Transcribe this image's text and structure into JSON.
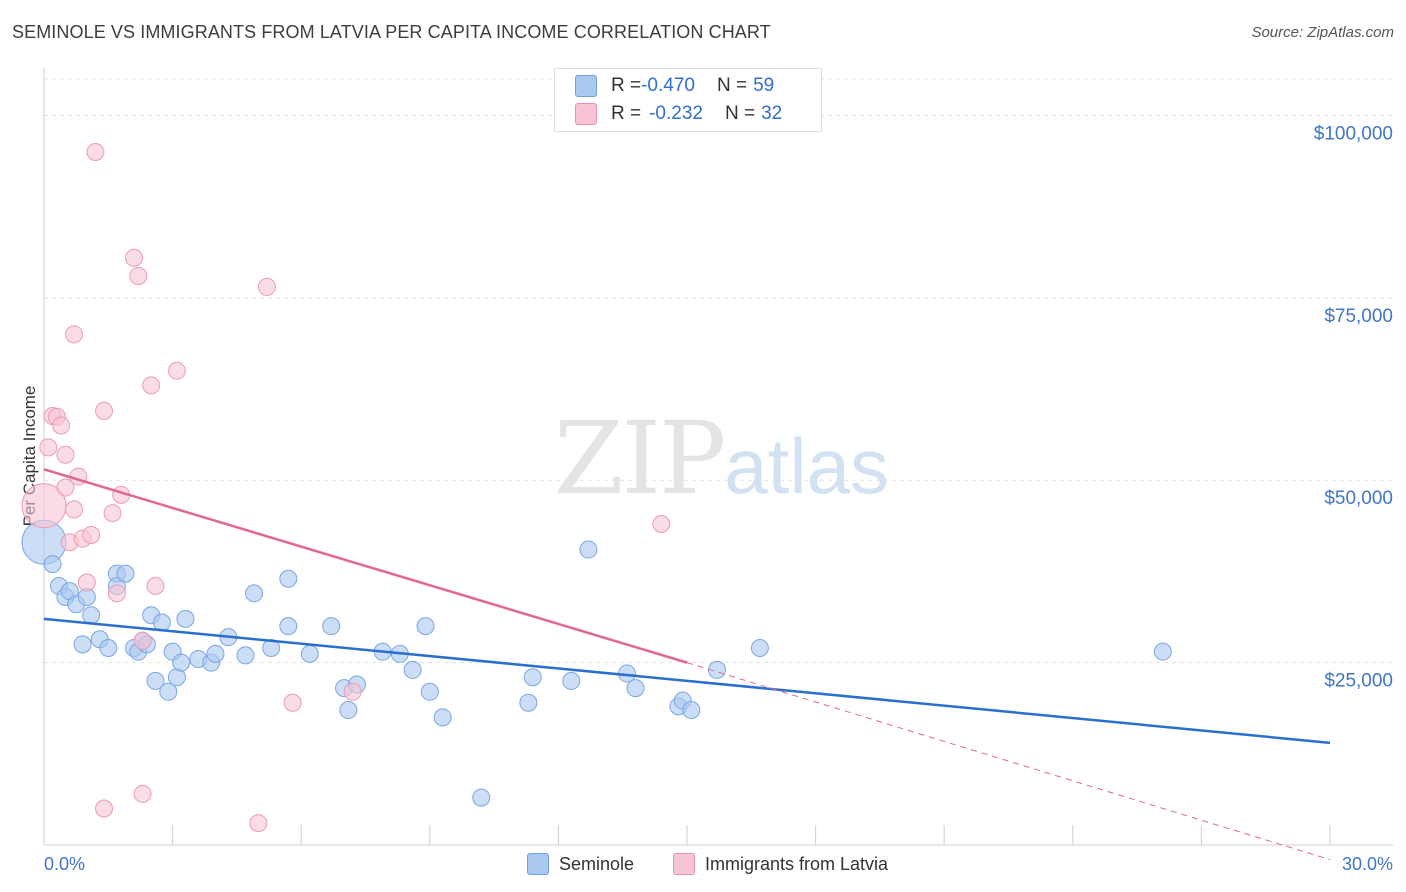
{
  "title": "SEMINOLE VS IMMIGRANTS FROM LATVIA PER CAPITA INCOME CORRELATION CHART",
  "source": "Source: ZipAtlas.com",
  "watermark": {
    "zip": "ZIP",
    "atlas": "atlas"
  },
  "legend_top": [
    {
      "r_label": "R = ",
      "r_value": "-0.470",
      "n_label": "N = ",
      "n_value": "59",
      "color": "#aac8f0",
      "border": "#6f9fdf"
    },
    {
      "r_label": "R = ",
      "r_value": "-0.232",
      "n_label": "N = ",
      "n_value": "32",
      "color": "#f7c4d3",
      "border": "#ec8fac"
    }
  ],
  "colors": {
    "blue_fill": "#aac8f0",
    "blue_line": "#2a6fcf",
    "pink_fill": "#f7c4d3",
    "pink_line": "#e0678d",
    "axis_text": "#3f76c8"
  },
  "chart_data": {
    "type": "scatter",
    "title": "SEMINOLE VS IMMIGRANTS FROM LATVIA PER CAPITA INCOME CORRELATION CHART",
    "ylabel": "Per Capita Income",
    "xlim": [
      0,
      30
    ],
    "ylim": [
      0,
      105000
    ],
    "x_tick_labels": [
      "0.0%",
      "30.0%"
    ],
    "y_tick_values": [
      25000,
      50000,
      75000,
      100000
    ],
    "y_tick_labels": [
      "$25,000",
      "$50,000",
      "$75,000",
      "$100,000"
    ],
    "grid": true,
    "series": [
      {
        "name": "Seminole",
        "trend": {
          "x0": 0,
          "y0": 31000,
          "x1": 30,
          "y1": 14000
        },
        "points": [
          [
            0.0,
            41500
          ],
          [
            0.2,
            38500
          ],
          [
            0.35,
            35500
          ],
          [
            0.5,
            34000
          ],
          [
            0.6,
            34800
          ],
          [
            0.75,
            33000
          ],
          [
            0.9,
            27500
          ],
          [
            1.0,
            34000
          ],
          [
            1.1,
            31500
          ],
          [
            1.3,
            28200
          ],
          [
            1.5,
            27000
          ],
          [
            1.7,
            37200
          ],
          [
            1.7,
            35500
          ],
          [
            1.9,
            37200
          ],
          [
            2.1,
            27000
          ],
          [
            2.2,
            26500
          ],
          [
            2.3,
            28000
          ],
          [
            2.4,
            27500
          ],
          [
            2.5,
            31500
          ],
          [
            2.6,
            22500
          ],
          [
            2.75,
            30500
          ],
          [
            2.9,
            21000
          ],
          [
            3.0,
            26500
          ],
          [
            3.1,
            23000
          ],
          [
            3.2,
            25000
          ],
          [
            3.3,
            31000
          ],
          [
            3.6,
            25500
          ],
          [
            3.9,
            25000
          ],
          [
            4.0,
            26200
          ],
          [
            4.3,
            28500
          ],
          [
            4.7,
            26000
          ],
          [
            4.9,
            34500
          ],
          [
            5.3,
            27000
          ],
          [
            5.7,
            36500
          ],
          [
            5.7,
            30000
          ],
          [
            6.2,
            26200
          ],
          [
            6.7,
            30000
          ],
          [
            7.0,
            21500
          ],
          [
            7.1,
            18500
          ],
          [
            7.3,
            22000
          ],
          [
            7.9,
            26500
          ],
          [
            8.3,
            26200
          ],
          [
            8.6,
            24000
          ],
          [
            8.9,
            30000
          ],
          [
            9.0,
            21000
          ],
          [
            9.3,
            17500
          ],
          [
            10.2,
            6500
          ],
          [
            11.3,
            19500
          ],
          [
            11.4,
            23000
          ],
          [
            12.3,
            22500
          ],
          [
            12.7,
            40500
          ],
          [
            13.6,
            23500
          ],
          [
            13.8,
            21500
          ],
          [
            14.8,
            19000
          ],
          [
            14.9,
            19800
          ],
          [
            15.1,
            18500
          ],
          [
            15.7,
            24000
          ],
          [
            16.7,
            27000
          ],
          [
            26.1,
            26500
          ]
        ]
      },
      {
        "name": "Immigrants from Latvia",
        "trend": {
          "x0": 0,
          "y0": 51500,
          "x1": 15,
          "y1": 25000,
          "dash_x1": 30,
          "dash_y1": -2000
        },
        "points": [
          [
            0.0,
            46500
          ],
          [
            0.1,
            54500
          ],
          [
            0.2,
            58800
          ],
          [
            0.3,
            58700
          ],
          [
            0.4,
            57500
          ],
          [
            0.5,
            53500
          ],
          [
            0.5,
            49000
          ],
          [
            0.6,
            41500
          ],
          [
            0.7,
            46000
          ],
          [
            0.7,
            70000
          ],
          [
            0.8,
            50500
          ],
          [
            0.9,
            42000
          ],
          [
            1.0,
            36000
          ],
          [
            1.1,
            42500
          ],
          [
            1.2,
            95000
          ],
          [
            1.4,
            59500
          ],
          [
            1.4,
            5000
          ],
          [
            1.6,
            45500
          ],
          [
            1.7,
            34500
          ],
          [
            1.8,
            48000
          ],
          [
            2.1,
            80500
          ],
          [
            2.2,
            78000
          ],
          [
            2.5,
            63000
          ],
          [
            2.3,
            28000
          ],
          [
            2.3,
            7000
          ],
          [
            2.6,
            35500
          ],
          [
            3.1,
            65000
          ],
          [
            5.0,
            3000
          ],
          [
            5.2,
            76500
          ],
          [
            5.8,
            19500
          ],
          [
            7.2,
            21000
          ],
          [
            14.4,
            44000
          ]
        ]
      }
    ]
  }
}
